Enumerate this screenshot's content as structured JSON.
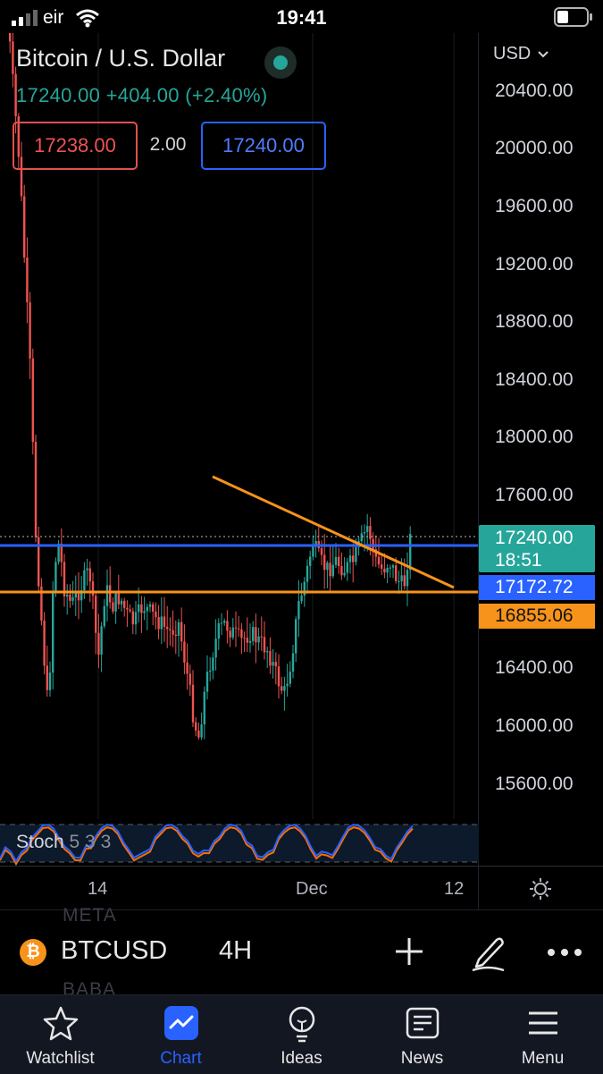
{
  "status_bar": {
    "carrier": "eir",
    "time": "19:41"
  },
  "chart_header": {
    "title": "Bitcoin / U.S. Dollar",
    "price": "17240.00",
    "change": "+404.00",
    "change_pct": "(+2.40%)",
    "bid": "17238.00",
    "spread": "2.00",
    "ask": "17240.00"
  },
  "price_axis": {
    "currency": "USD",
    "ticks": [
      "20400.00",
      "20000.00",
      "19600.00",
      "19200.00",
      "18800.00",
      "18400.00",
      "18000.00",
      "17600.00",
      "16400.00",
      "16000.00",
      "15600.00"
    ],
    "last_price_label": "17240.00",
    "countdown": "18:51",
    "blue_line_label": "17172.72",
    "orange_line_label": "16855.06"
  },
  "indicator": {
    "name": "Stoch",
    "params": "5 3 3"
  },
  "time_axis": {
    "labels": [
      "14",
      "Dec",
      "12"
    ]
  },
  "symbol_bar": {
    "background_top": "META",
    "background_bottom": "BABA",
    "coin_glyph": "₿",
    "symbol": "BTCUSD",
    "interval": "4H"
  },
  "colors": {
    "up": "#26a69a",
    "down": "#ef5350",
    "blue_line": "#2962ff",
    "orange_line": "#f7931a",
    "nav_active": "#2962ff"
  },
  "nav": {
    "items": [
      {
        "label": "Watchlist",
        "icon": "star-icon"
      },
      {
        "label": "Chart",
        "icon": "chart-icon",
        "active": true
      },
      {
        "label": "Ideas",
        "icon": "lightbulb-icon"
      },
      {
        "label": "News",
        "icon": "news-icon"
      },
      {
        "label": "Menu",
        "icon": "menu-icon"
      }
    ]
  }
}
